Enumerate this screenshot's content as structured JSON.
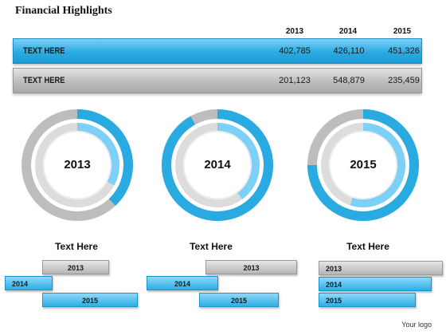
{
  "title": "Financial Highlights",
  "table": {
    "years": [
      "2013",
      "2014",
      "2015"
    ],
    "rows": [
      {
        "label": "TEXT HERE",
        "values": [
          "402,785",
          "426,110",
          "451,326"
        ]
      },
      {
        "label": "TEXT HERE",
        "values": [
          "201,123",
          "548,879",
          "235,459"
        ]
      }
    ]
  },
  "rings": [
    {
      "year": "2013",
      "outer_blue_fraction": 0.38,
      "inner_blue_fraction": 0.33
    },
    {
      "year": "2014",
      "outer_blue_fraction": 0.92,
      "inner_blue_fraction": 0.4
    },
    {
      "year": "2015",
      "outer_blue_fraction": 0.75,
      "inner_blue_fraction": 0.55
    }
  ],
  "sections": [
    {
      "heading": "Text Here",
      "tags": [
        "2013",
        "2014",
        "2015"
      ]
    },
    {
      "heading": "Text Here",
      "tags": [
        "2013",
        "2014",
        "2015"
      ]
    },
    {
      "heading": "Text Here",
      "tags": [
        "2013",
        "2014",
        "2015"
      ]
    }
  ],
  "footer": "Your logo",
  "colors": {
    "blue": "#29abe2",
    "grey": "#bdbdbd",
    "light_blue": "#7fd0f7",
    "light_grey": "#dcdcdc"
  }
}
